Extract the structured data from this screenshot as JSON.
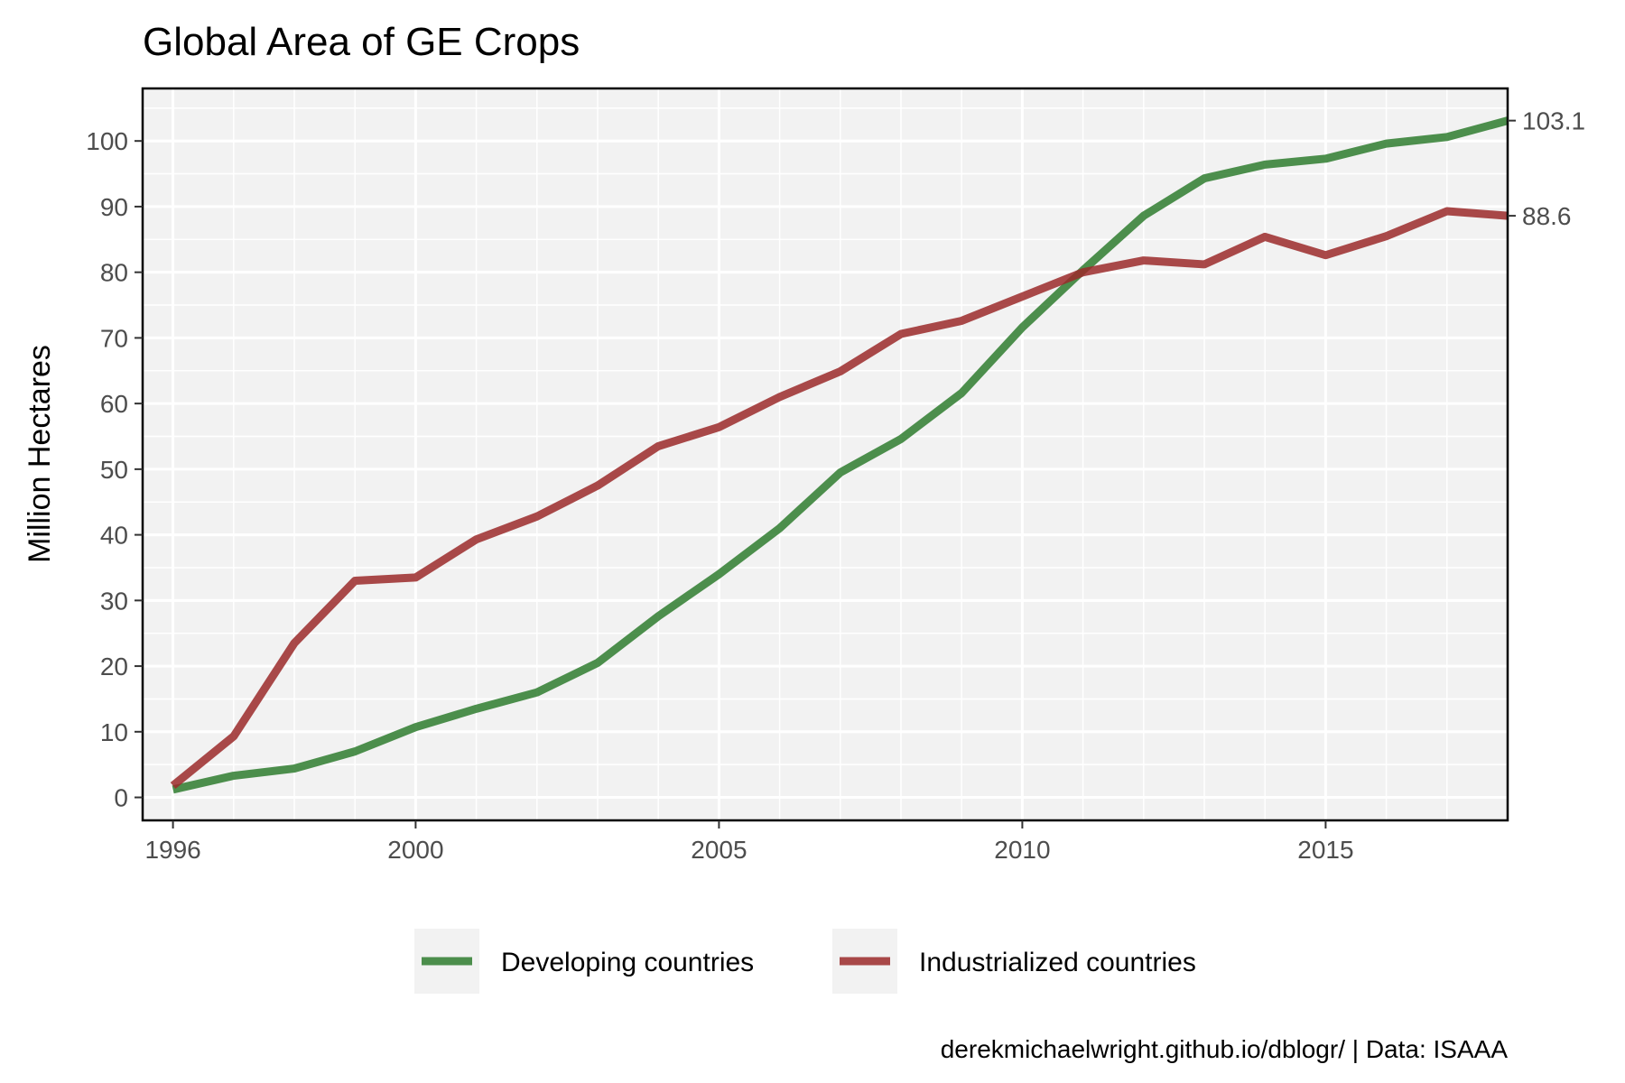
{
  "chart_data": {
    "type": "line",
    "title": "Global Area of GE Crops",
    "xlabel": "",
    "ylabel": "Million Hectares",
    "caption": "derekmichaelwright.github.io/dblogr/ | Data: ISAAA",
    "x": [
      1996,
      1997,
      1998,
      1999,
      2000,
      2001,
      2002,
      2003,
      2004,
      2005,
      2006,
      2007,
      2008,
      2009,
      2010,
      2011,
      2012,
      2013,
      2014,
      2015,
      2016,
      2017,
      2018
    ],
    "xlim": [
      1995.5,
      2018
    ],
    "ylim": [
      -3.5,
      108
    ],
    "xticks": [
      1996,
      2000,
      2005,
      2010,
      2015
    ],
    "xtick_labels": [
      "1996",
      "2000",
      "2005",
      "2010",
      "2015"
    ],
    "yticks": [
      0,
      10,
      20,
      30,
      40,
      50,
      60,
      70,
      80,
      90,
      100
    ],
    "ytick_labels": [
      "0",
      "10",
      "20",
      "30",
      "40",
      "50",
      "60",
      "70",
      "80",
      "90",
      "100"
    ],
    "grid": true,
    "legend_position": "bottom",
    "secondary_axis": {
      "labels": [
        "103.1",
        "88.6"
      ],
      "values": [
        103.1,
        88.6
      ]
    },
    "series": [
      {
        "name": "Developing countries",
        "color": "#2f7d2f",
        "values": [
          1.2,
          3.3,
          4.4,
          7.0,
          10.7,
          13.5,
          16.0,
          20.5,
          27.6,
          34.0,
          41.0,
          49.5,
          54.6,
          61.6,
          71.6,
          80.3,
          88.6,
          94.3,
          96.4,
          97.3,
          99.6,
          100.6,
          103.1
        ]
      },
      {
        "name": "Industrialized countries",
        "color": "#9b2a2a",
        "values": [
          1.8,
          9.3,
          23.5,
          33.0,
          33.5,
          39.3,
          42.8,
          47.5,
          53.5,
          56.4,
          61.0,
          64.9,
          70.6,
          72.6,
          76.3,
          80.0,
          81.8,
          81.2,
          85.4,
          82.6,
          85.5,
          89.3,
          88.6
        ]
      }
    ]
  }
}
